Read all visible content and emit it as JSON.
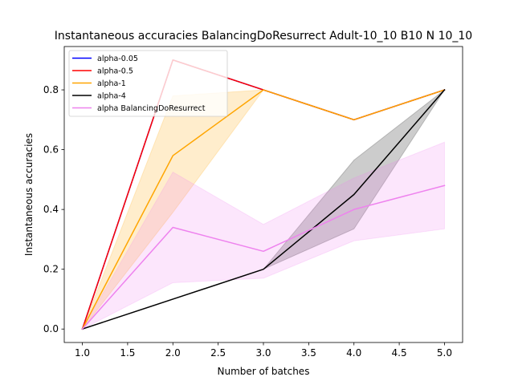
{
  "chart_data": {
    "type": "line",
    "title": "Instantaneous accuracies BalancingDoResurrect Adult-10_10 B10 N 10_10",
    "xlabel": "Number of batches",
    "ylabel": "Instantaneous accuracies",
    "xlim": [
      0.8,
      5.2
    ],
    "ylim": [
      -0.045,
      0.945
    ],
    "xticks": [
      1.0,
      1.5,
      2.0,
      2.5,
      3.0,
      3.5,
      4.0,
      4.5,
      5.0
    ],
    "xtick_labels": [
      "1.0",
      "1.5",
      "2.0",
      "2.5",
      "3.0",
      "3.5",
      "4.0",
      "4.5",
      "5.0"
    ],
    "yticks": [
      0.0,
      0.2,
      0.4,
      0.6,
      0.8
    ],
    "ytick_labels": [
      "0.0",
      "0.2",
      "0.4",
      "0.6",
      "0.8"
    ],
    "grid": false,
    "legend_position": "top-left",
    "x": [
      1,
      2,
      3,
      4,
      5
    ],
    "series": [
      {
        "name": "alpha-0.05",
        "color": "#0000ff",
        "values": [
          0.0,
          0.9,
          0.8,
          0.7,
          0.8
        ]
      },
      {
        "name": "alpha-0.5",
        "color": "#ff0000",
        "values": [
          0.0,
          0.9,
          0.8,
          0.7,
          0.8
        ]
      },
      {
        "name": "alpha-1",
        "color": "#ffa500",
        "values": [
          0.0,
          0.58,
          0.8,
          0.7,
          0.8
        ],
        "band_lower": [
          0.0,
          0.39,
          0.8,
          0.7,
          0.8
        ],
        "band_upper": [
          0.0,
          0.78,
          0.8,
          0.7,
          0.8
        ]
      },
      {
        "name": "alpha-4",
        "color": "#000000",
        "values": [
          0.0,
          0.1,
          0.2,
          0.45,
          0.8
        ],
        "band_lower": [
          0.0,
          0.1,
          0.2,
          0.335,
          0.8
        ],
        "band_upper": [
          0.0,
          0.1,
          0.2,
          0.565,
          0.8
        ]
      },
      {
        "name": "alpha BalancingDoResurrect",
        "color": "#ee82ee",
        "values": [
          0.0,
          0.34,
          0.26,
          0.4,
          0.48
        ],
        "band_lower": [
          0.0,
          0.155,
          0.17,
          0.295,
          0.335
        ],
        "band_upper": [
          0.0,
          0.525,
          0.35,
          0.505,
          0.625
        ]
      }
    ]
  }
}
